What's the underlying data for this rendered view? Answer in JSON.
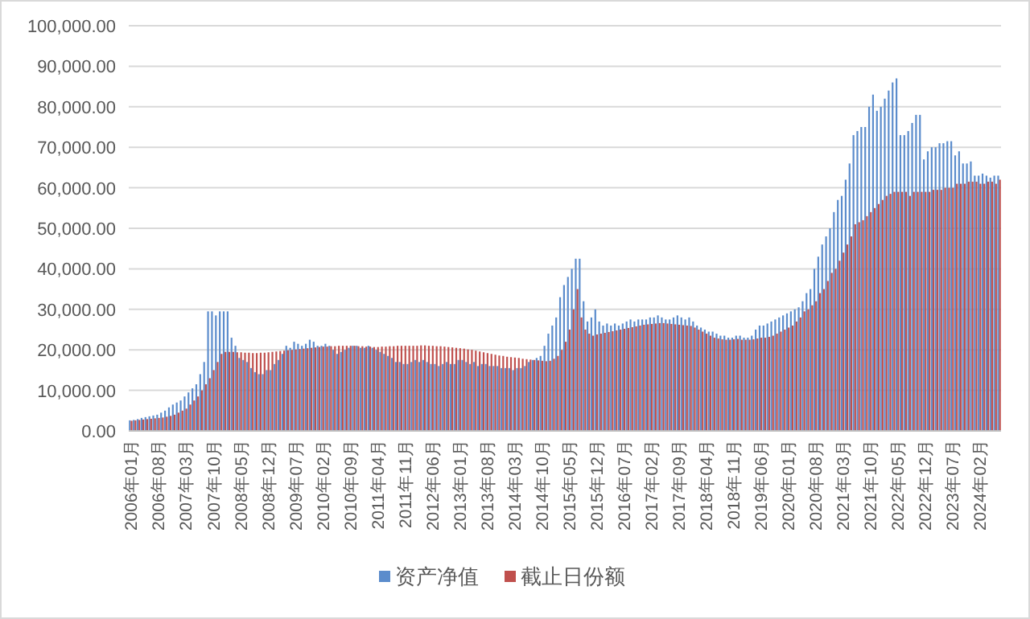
{
  "chart_data": {
    "type": "bar",
    "ylim": [
      0,
      100000
    ],
    "yticks": [
      {
        "value": 0,
        "label": "0.00"
      },
      {
        "value": 10000,
        "label": "10,000.00"
      },
      {
        "value": 20000,
        "label": "20,000.00"
      },
      {
        "value": 30000,
        "label": "30,000.00"
      },
      {
        "value": 40000,
        "label": "40,000.00"
      },
      {
        "value": 50000,
        "label": "50,000.00"
      },
      {
        "value": 60000,
        "label": "60,000.00"
      },
      {
        "value": 70000,
        "label": "70,000.00"
      },
      {
        "value": 80000,
        "label": "80,000.00"
      },
      {
        "value": 90000,
        "label": "90,000.00"
      },
      {
        "value": 100000,
        "label": "100,000.00"
      }
    ],
    "grid": "y",
    "legend": "bottom",
    "categories": [
      "2006年01月",
      null,
      null,
      null,
      null,
      null,
      null,
      "2006年08月",
      null,
      null,
      null,
      null,
      null,
      null,
      "2007年03月",
      null,
      null,
      null,
      null,
      null,
      null,
      "2007年10月",
      null,
      null,
      null,
      null,
      null,
      null,
      "2008年05月",
      null,
      null,
      null,
      null,
      null,
      null,
      "2008年12月",
      null,
      null,
      null,
      null,
      null,
      null,
      "2009年07月",
      null,
      null,
      null,
      null,
      null,
      null,
      "2010年02月",
      null,
      null,
      null,
      null,
      null,
      null,
      "2010年09月",
      null,
      null,
      null,
      null,
      null,
      null,
      "2011年04月",
      null,
      null,
      null,
      null,
      null,
      null,
      "2011年11月",
      null,
      null,
      null,
      null,
      null,
      null,
      "2012年06月",
      null,
      null,
      null,
      null,
      null,
      null,
      "2013年01月",
      null,
      null,
      null,
      null,
      null,
      null,
      "2013年08月",
      null,
      null,
      null,
      null,
      null,
      null,
      "2014年03月",
      null,
      null,
      null,
      null,
      null,
      null,
      "2014年10月",
      null,
      null,
      null,
      null,
      null,
      null,
      "2015年05月",
      null,
      null,
      null,
      null,
      null,
      null,
      "2015年12月",
      null,
      null,
      null,
      null,
      null,
      null,
      "2016年07月",
      null,
      null,
      null,
      null,
      null,
      null,
      "2017年02月",
      null,
      null,
      null,
      null,
      null,
      null,
      "2017年09月",
      null,
      null,
      null,
      null,
      null,
      null,
      "2018年04月",
      null,
      null,
      null,
      null,
      null,
      null,
      "2018年11月",
      null,
      null,
      null,
      null,
      null,
      null,
      "2019年06月",
      null,
      null,
      null,
      null,
      null,
      null,
      "2020年01月",
      null,
      null,
      null,
      null,
      null,
      null,
      "2020年08月",
      null,
      null,
      null,
      null,
      null,
      null,
      "2021年03月",
      null,
      null,
      null,
      null,
      null,
      null,
      "2021年10月",
      null,
      null,
      null,
      null,
      null,
      null,
      "2022年05月",
      null,
      null,
      null,
      null,
      null,
      null,
      "2022年12月",
      null,
      null,
      null,
      null,
      null,
      null,
      "2023年07月",
      null,
      null,
      null,
      null,
      null,
      null,
      "2024年02月",
      null,
      null,
      null,
      null,
      null
    ],
    "series": [
      {
        "name": "资产净值",
        "color": "#5b8ccc",
        "values": [
          2600,
          2700,
          2900,
          3200,
          3400,
          3600,
          3800,
          4000,
          4500,
          5000,
          5800,
          6500,
          7000,
          7500,
          8500,
          9500,
          10500,
          11500,
          14000,
          17000,
          29500,
          29500,
          28500,
          29500,
          29500,
          29500,
          23000,
          21000,
          18000,
          17500,
          17000,
          15500,
          14500,
          14000,
          14000,
          15000,
          15000,
          16500,
          17500,
          19000,
          21000,
          20500,
          22000,
          21500,
          21000,
          21500,
          22500,
          22000,
          21000,
          21000,
          21500,
          21000,
          20000,
          19000,
          19500,
          20000,
          20500,
          21000,
          21000,
          20500,
          20500,
          21000,
          20500,
          20000,
          19500,
          19000,
          18500,
          18000,
          17000,
          17000,
          16500,
          16500,
          17000,
          17500,
          17000,
          17500,
          17000,
          16500,
          16500,
          16000,
          16500,
          17000,
          16500,
          16500,
          17500,
          17500,
          17000,
          16500,
          17000,
          16000,
          16500,
          16500,
          16000,
          16000,
          16000,
          15500,
          15500,
          15500,
          15000,
          15500,
          15500,
          16000,
          17000,
          17500,
          18000,
          18500,
          21000,
          24000,
          26000,
          28000,
          33000,
          36000,
          38000,
          40000,
          42500,
          42500,
          32000,
          27000,
          28000,
          30000,
          27000,
          26000,
          26500,
          26000,
          26500,
          26000,
          26500,
          27000,
          27500,
          27000,
          27500,
          27500,
          27500,
          28000,
          28000,
          28500,
          28000,
          27500,
          27500,
          28000,
          28500,
          28000,
          27500,
          28000,
          27000,
          26000,
          25500,
          25000,
          24500,
          24500,
          24000,
          23500,
          23500,
          23000,
          23000,
          23500,
          23500,
          23000,
          23000,
          23500,
          25000,
          26000,
          26000,
          26500,
          27000,
          27500,
          28000,
          28500,
          29000,
          29500,
          30000,
          30500,
          32000,
          34000,
          35000,
          40000,
          43000,
          46000,
          48000,
          50000,
          54000,
          57000,
          58000,
          62000,
          66000,
          73000,
          74000,
          75000,
          75000,
          80000,
          83000,
          79000,
          80000,
          82000,
          84000,
          86000,
          87000,
          73000,
          73000,
          74000,
          76000,
          78000,
          78000,
          67000,
          69000,
          70000,
          70000,
          71000,
          71000,
          71500,
          71500,
          68000,
          69000,
          66000,
          66000,
          66500,
          63000,
          63000,
          63500,
          63000,
          62500,
          63000,
          63000
        ]
      },
      {
        "name": "截止日份额",
        "color": "#c0504d",
        "values": [
          2500,
          2600,
          2700,
          2800,
          2900,
          3000,
          3100,
          3200,
          3300,
          3500,
          3700,
          4000,
          4500,
          5000,
          5500,
          6500,
          7500,
          8500,
          10000,
          11500,
          13000,
          15000,
          17000,
          19000,
          19500,
          19500,
          19500,
          19400,
          19400,
          19300,
          19300,
          19200,
          19200,
          19300,
          19300,
          19400,
          19500,
          19600,
          19700,
          19800,
          19900,
          20000,
          20100,
          20200,
          20300,
          20400,
          20500,
          20600,
          20700,
          20800,
          20800,
          20900,
          20900,
          21000,
          21000,
          21000,
          21000,
          21000,
          20900,
          20900,
          20800,
          20800,
          20700,
          20700,
          20800,
          20800,
          20900,
          20900,
          21000,
          21000,
          21000,
          21000,
          21000,
          21000,
          21100,
          21100,
          21000,
          21000,
          20900,
          20900,
          20800,
          20700,
          20600,
          20500,
          20400,
          20300,
          20100,
          20000,
          19800,
          19600,
          19400,
          19200,
          19000,
          18800,
          18600,
          18500,
          18300,
          18200,
          18100,
          18000,
          17800,
          17700,
          17600,
          17500,
          17400,
          17300,
          17200,
          17300,
          17800,
          18500,
          20000,
          22000,
          25000,
          30000,
          35000,
          28000,
          25000,
          24000,
          23500,
          23800,
          24000,
          24200,
          24400,
          24600,
          24800,
          25000,
          25200,
          25400,
          25600,
          25800,
          26000,
          26200,
          26300,
          26400,
          26500,
          26600,
          26600,
          26500,
          26400,
          26300,
          26200,
          26100,
          26000,
          25900,
          25500,
          25000,
          24500,
          24000,
          23500,
          23000,
          22800,
          22600,
          22500,
          22500,
          22600,
          22700,
          22500,
          22500,
          22500,
          22600,
          22800,
          23000,
          23000,
          23200,
          23500,
          24000,
          24500,
          25000,
          25500,
          26000,
          27000,
          28000,
          29500,
          30000,
          31000,
          32000,
          34000,
          35000,
          37000,
          39000,
          40000,
          42000,
          44000,
          46000,
          48000,
          51000,
          51500,
          52000,
          53000,
          54000,
          55000,
          56000,
          57000,
          58000,
          58500,
          59000,
          59000,
          59000,
          59000,
          58000,
          59000,
          59000,
          59000,
          59000,
          59000,
          59500,
          59500,
          59500,
          60000,
          60000,
          60000,
          61000,
          61000,
          61000,
          61500,
          61500,
          61500,
          61000,
          61000,
          61500,
          61500,
          61000,
          62000
        ]
      }
    ]
  }
}
